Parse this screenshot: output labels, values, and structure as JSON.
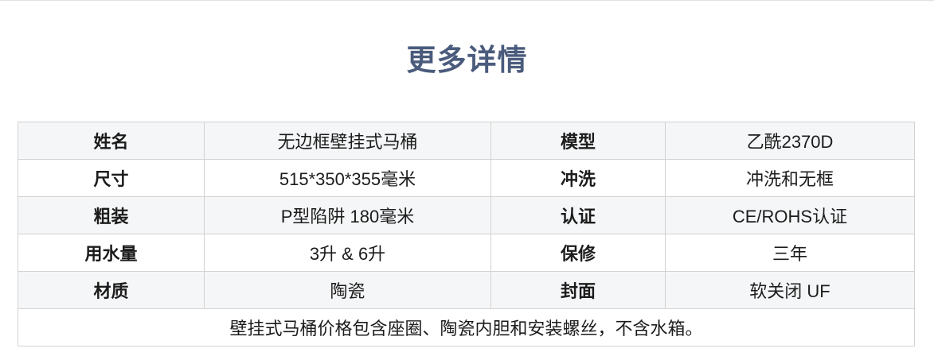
{
  "section_title": "更多详情",
  "colors": {
    "title_text": "#4a5b7c",
    "stripe": "#f5f6f7",
    "border": "#d2d2d2",
    "text": "#1c1c1c",
    "divider": "#e0e0e0"
  },
  "table": {
    "rows": [
      {
        "label1": "姓名",
        "value1": "无边框壁挂式马桶",
        "label2": "模型",
        "value2": "乙酰2370D"
      },
      {
        "label1": "尺寸",
        "value1": "515*350*355毫米",
        "label2": "冲洗",
        "value2": "冲洗和无框"
      },
      {
        "label1": "粗装",
        "value1": "P型陷阱 180毫米",
        "label2": "认证",
        "value2": "CE/ROHS认证"
      },
      {
        "label1": "用水量",
        "value1": "3升 & 6升",
        "label2": "保修",
        "value2": "三年"
      },
      {
        "label1": "材质",
        "value1": "陶瓷",
        "label2": "封面",
        "value2": "软关闭 UF"
      }
    ],
    "footer_note": "壁挂式马桶价格包含座圈、陶瓷内胆和安装螺丝，不含水箱。"
  }
}
